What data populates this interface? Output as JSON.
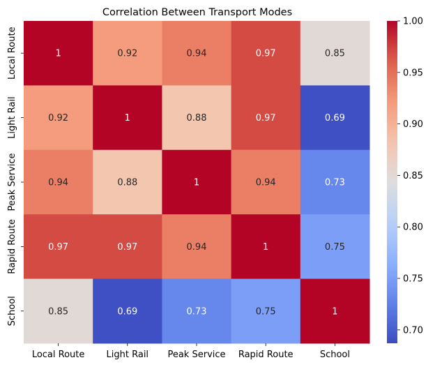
{
  "chart_data": {
    "type": "heatmap",
    "title": "Correlation Between Transport Modes",
    "xlabel": "",
    "ylabel": "",
    "x_categories": [
      "Local Route",
      "Light Rail",
      "Peak Service",
      "Rapid Route",
      "School"
    ],
    "y_categories": [
      "Local Route",
      "Light Rail",
      "Peak Service",
      "Rapid Route",
      "School"
    ],
    "values": [
      [
        1,
        0.92,
        0.94,
        0.97,
        0.85
      ],
      [
        0.92,
        1,
        0.88,
        0.97,
        0.69
      ],
      [
        0.94,
        0.88,
        1,
        0.94,
        0.73
      ],
      [
        0.97,
        0.97,
        0.94,
        1,
        0.75
      ],
      [
        0.85,
        0.69,
        0.73,
        0.75,
        1
      ]
    ],
    "colormap": "coolwarm",
    "color_range": [
      0.687,
      1.0
    ],
    "colorbar_ticks": [
      "0.70",
      "0.75",
      "0.80",
      "0.85",
      "0.90",
      "0.95",
      "1.00"
    ],
    "annotations": true,
    "grid": false
  }
}
